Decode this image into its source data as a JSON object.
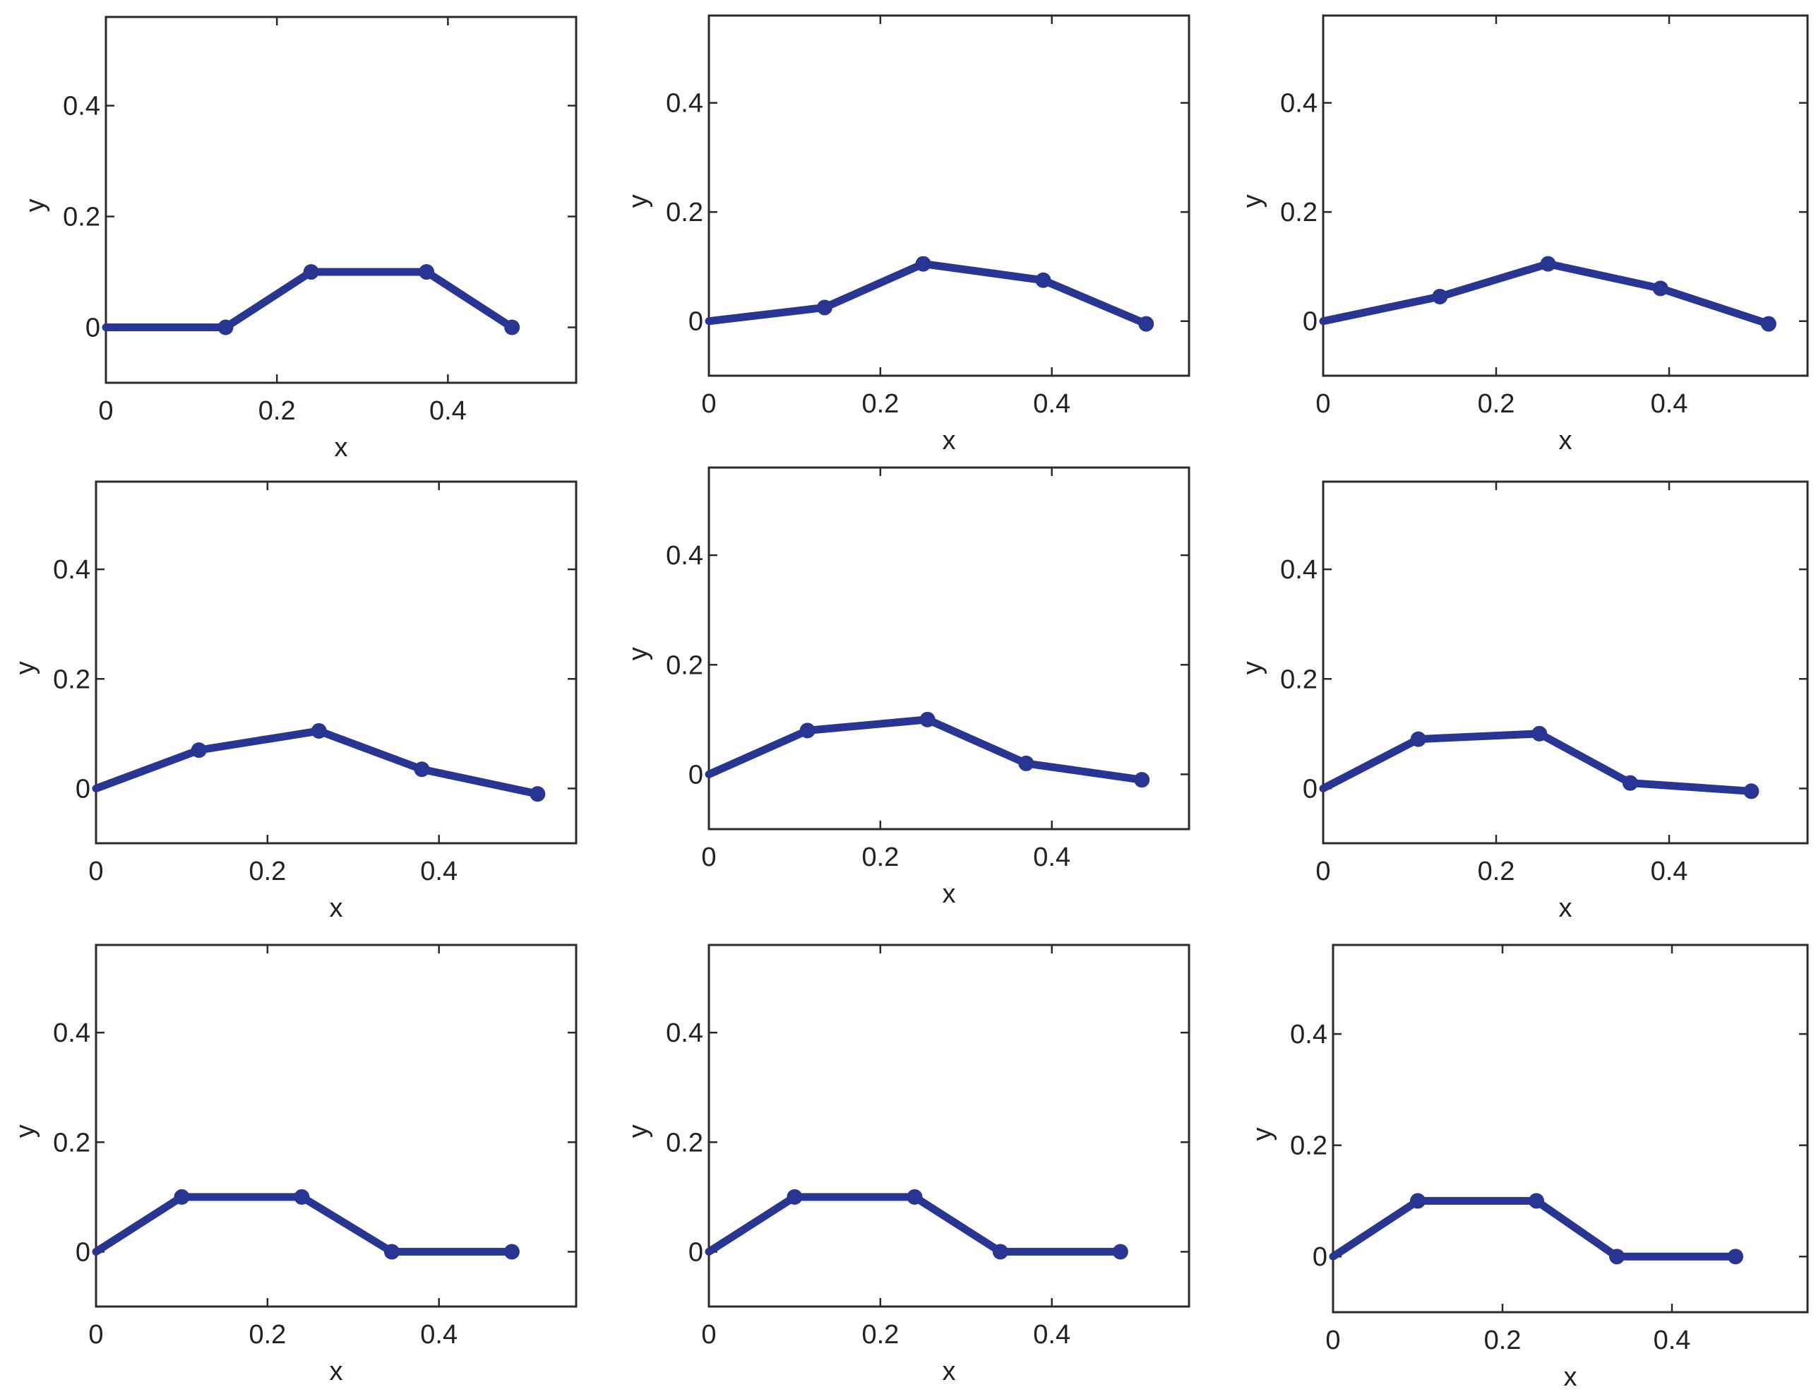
{
  "figure": {
    "rows": 3,
    "cols": 3
  },
  "colors": {
    "series": "#283593",
    "axis": "#2a2a2a",
    "text": "#222222"
  },
  "chart_data": [
    {
      "type": "line",
      "title": "",
      "xlabel": "x",
      "ylabel": "y",
      "xlim": [
        0,
        0.55
      ],
      "ylim": [
        -0.1,
        0.56
      ],
      "xticks": [
        0,
        0.2,
        0.4
      ],
      "xtick_labels": [
        "0",
        "0.2",
        "0.4"
      ],
      "yticks": [
        0,
        0.2,
        0.4
      ],
      "ytick_labels": [
        "0",
        "0.2",
        "0.4"
      ],
      "x": [
        0,
        0.14,
        0.24,
        0.375,
        0.475
      ],
      "y": [
        0,
        0,
        0.1,
        0.1,
        0
      ],
      "marker_start": false
    },
    {
      "type": "line",
      "title": "",
      "xlabel": "x",
      "ylabel": "y",
      "xlim": [
        0,
        0.56
      ],
      "ylim": [
        -0.1,
        0.56
      ],
      "xticks": [
        0,
        0.2,
        0.4
      ],
      "xtick_labels": [
        "0",
        "0.2",
        "0.4"
      ],
      "yticks": [
        0,
        0.2,
        0.4
      ],
      "ytick_labels": [
        "0",
        "0.2",
        "0.4"
      ],
      "x": [
        0,
        0.135,
        0.25,
        0.39,
        0.51
      ],
      "y": [
        0,
        0.025,
        0.105,
        0.075,
        -0.005
      ],
      "marker_start": false
    },
    {
      "type": "line",
      "title": "",
      "xlabel": "x",
      "ylabel": "y",
      "xlim": [
        0,
        0.56
      ],
      "ylim": [
        -0.1,
        0.56
      ],
      "xticks": [
        0,
        0.2,
        0.4
      ],
      "xtick_labels": [
        "0",
        "0.2",
        "0.4"
      ],
      "yticks": [
        0,
        0.2,
        0.4
      ],
      "ytick_labels": [
        "0",
        "0.2",
        "0.4"
      ],
      "x": [
        0,
        0.135,
        0.26,
        0.39,
        0.515
      ],
      "y": [
        0,
        0.045,
        0.105,
        0.06,
        -0.005
      ],
      "marker_start": false
    },
    {
      "type": "line",
      "title": "",
      "xlabel": "x",
      "ylabel": "y",
      "xlim": [
        0,
        0.56
      ],
      "ylim": [
        -0.1,
        0.56
      ],
      "xticks": [
        0,
        0.2,
        0.4
      ],
      "xtick_labels": [
        "0",
        "0.2",
        "0.4"
      ],
      "yticks": [
        0,
        0.2,
        0.4
      ],
      "ytick_labels": [
        "0",
        "0.2",
        "0.4"
      ],
      "x": [
        0,
        0.12,
        0.26,
        0.38,
        0.515
      ],
      "y": [
        0,
        0.07,
        0.105,
        0.035,
        -0.01
      ],
      "marker_start": false
    },
    {
      "type": "line",
      "title": "",
      "xlabel": "x",
      "ylabel": "y",
      "xlim": [
        0,
        0.56
      ],
      "ylim": [
        -0.1,
        0.56
      ],
      "xticks": [
        0,
        0.2,
        0.4
      ],
      "xtick_labels": [
        "0",
        "0.2",
        "0.4"
      ],
      "yticks": [
        0,
        0.2,
        0.4
      ],
      "ytick_labels": [
        "0",
        "0.2",
        "0.4"
      ],
      "x": [
        0,
        0.115,
        0.255,
        0.37,
        0.505
      ],
      "y": [
        0,
        0.08,
        0.1,
        0.02,
        -0.01
      ],
      "marker_start": false
    },
    {
      "type": "line",
      "title": "",
      "xlabel": "x",
      "ylabel": "y",
      "xlim": [
        0,
        0.56
      ],
      "ylim": [
        -0.1,
        0.56
      ],
      "xticks": [
        0,
        0.2,
        0.4
      ],
      "xtick_labels": [
        "0",
        "0.2",
        "0.4"
      ],
      "yticks": [
        0,
        0.2,
        0.4
      ],
      "ytick_labels": [
        "0",
        "0.2",
        "0.4"
      ],
      "x": [
        0,
        0.11,
        0.25,
        0.355,
        0.495
      ],
      "y": [
        0,
        0.09,
        0.1,
        0.01,
        -0.005
      ],
      "marker_start": false
    },
    {
      "type": "line",
      "title": "",
      "xlabel": "x",
      "ylabel": "y",
      "xlim": [
        0,
        0.56
      ],
      "ylim": [
        -0.1,
        0.56
      ],
      "xticks": [
        0,
        0.2,
        0.4
      ],
      "xtick_labels": [
        "0",
        "0.2",
        "0.4"
      ],
      "yticks": [
        0,
        0.2,
        0.4
      ],
      "ytick_labels": [
        "0",
        "0.2",
        "0.4"
      ],
      "x": [
        0,
        0.1,
        0.24,
        0.345,
        0.485
      ],
      "y": [
        0,
        0.1,
        0.1,
        0,
        0
      ],
      "marker_start": false
    },
    {
      "type": "line",
      "title": "",
      "xlabel": "x",
      "ylabel": "y",
      "xlim": [
        0,
        0.56
      ],
      "ylim": [
        -0.1,
        0.56
      ],
      "xticks": [
        0,
        0.2,
        0.4
      ],
      "xtick_labels": [
        "0",
        "0.2",
        "0.4"
      ],
      "yticks": [
        0,
        0.2,
        0.4
      ],
      "ytick_labels": [
        "0",
        "0.2",
        "0.4"
      ],
      "x": [
        0,
        0.1,
        0.24,
        0.34,
        0.48
      ],
      "y": [
        0,
        0.1,
        0.1,
        0,
        0
      ],
      "marker_start": false
    },
    {
      "type": "line",
      "title": "",
      "xlabel": "x",
      "ylabel": "y",
      "xlim": [
        0,
        0.56
      ],
      "ylim": [
        -0.1,
        0.56
      ],
      "xticks": [
        0,
        0.2,
        0.4
      ],
      "xtick_labels": [
        "0",
        "0.2",
        "0.4"
      ],
      "yticks": [
        0,
        0.2,
        0.4
      ],
      "ytick_labels": [
        "0",
        "0.2",
        "0.4"
      ],
      "x": [
        0,
        0.1,
        0.24,
        0.335,
        0.475
      ],
      "y": [
        0,
        0.1,
        0.1,
        0,
        0
      ],
      "marker_start": false
    }
  ]
}
